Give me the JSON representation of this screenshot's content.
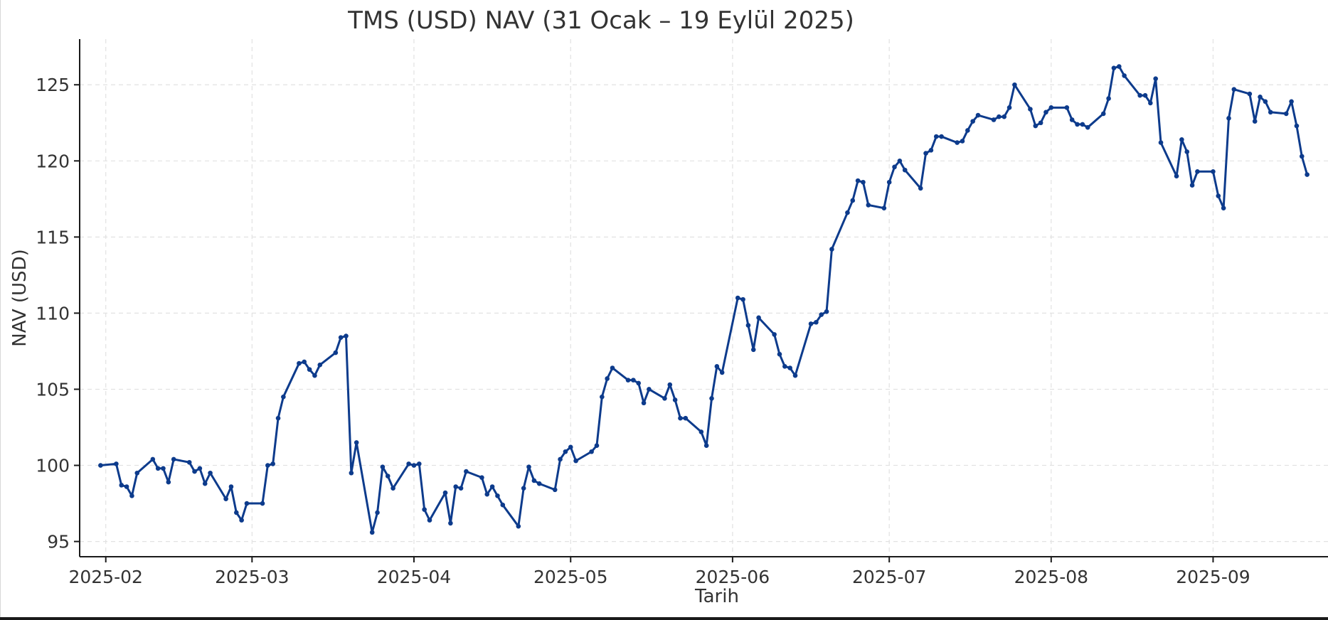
{
  "chart_data": {
    "type": "line",
    "title": "TMS (USD) NAV (31 Ocak – 19 Eylül 2025)",
    "xlabel": "Tarih",
    "ylabel": "NAV (USD)",
    "ylim": [
      94,
      128
    ],
    "xlim": [
      "2025-01-27",
      "2025-09-23"
    ],
    "yticks": [
      95,
      100,
      105,
      110,
      115,
      120,
      125
    ],
    "xticks": [
      "2025-02-01",
      "2025-03-01",
      "2025-04-01",
      "2025-05-01",
      "2025-06-01",
      "2025-07-01",
      "2025-08-01",
      "2025-09-01"
    ],
    "xtick_labels": [
      "2025-02",
      "2025-03",
      "2025-04",
      "2025-05",
      "2025-06",
      "2025-07",
      "2025-08",
      "2025-09"
    ],
    "grid": true,
    "line_color": "#0d3b8c",
    "series": [
      {
        "x": [
          "2025-01-31",
          "2025-02-03",
          "2025-02-04",
          "2025-02-05",
          "2025-02-06",
          "2025-02-07",
          "2025-02-10",
          "2025-02-11",
          "2025-02-12",
          "2025-02-13",
          "2025-02-14",
          "2025-02-17",
          "2025-02-18",
          "2025-02-19",
          "2025-02-20",
          "2025-02-21",
          "2025-02-24",
          "2025-02-25",
          "2025-02-26",
          "2025-02-27",
          "2025-02-28",
          "2025-03-03",
          "2025-03-04",
          "2025-03-05",
          "2025-03-06",
          "2025-03-07",
          "2025-03-10",
          "2025-03-11",
          "2025-03-12",
          "2025-03-13",
          "2025-03-14",
          "2025-03-17",
          "2025-03-18",
          "2025-03-19",
          "2025-03-20",
          "2025-03-21",
          "2025-03-24",
          "2025-03-25",
          "2025-03-26",
          "2025-03-27",
          "2025-03-28",
          "2025-03-31",
          "2025-04-01",
          "2025-04-02",
          "2025-04-03",
          "2025-04-04",
          "2025-04-07",
          "2025-04-08",
          "2025-04-09",
          "2025-04-10",
          "2025-04-11",
          "2025-04-14",
          "2025-04-15",
          "2025-04-16",
          "2025-04-17",
          "2025-04-18",
          "2025-04-21",
          "2025-04-22",
          "2025-04-23",
          "2025-04-24",
          "2025-04-25",
          "2025-04-28",
          "2025-04-29",
          "2025-04-30",
          "2025-05-01",
          "2025-05-02",
          "2025-05-05",
          "2025-05-06",
          "2025-05-07",
          "2025-05-08",
          "2025-05-09",
          "2025-05-12",
          "2025-05-13",
          "2025-05-14",
          "2025-05-15",
          "2025-05-16",
          "2025-05-19",
          "2025-05-20",
          "2025-05-21",
          "2025-05-22",
          "2025-05-23",
          "2025-05-26",
          "2025-05-27",
          "2025-05-28",
          "2025-05-29",
          "2025-05-30",
          "2025-06-02",
          "2025-06-03",
          "2025-06-04",
          "2025-06-05",
          "2025-06-06",
          "2025-06-09",
          "2025-06-10",
          "2025-06-11",
          "2025-06-12",
          "2025-06-13",
          "2025-06-16",
          "2025-06-17",
          "2025-06-18",
          "2025-06-19",
          "2025-06-20",
          "2025-06-23",
          "2025-06-24",
          "2025-06-25",
          "2025-06-26",
          "2025-06-27",
          "2025-06-30",
          "2025-07-01",
          "2025-07-02",
          "2025-07-03",
          "2025-07-04",
          "2025-07-07",
          "2025-07-08",
          "2025-07-09",
          "2025-07-10",
          "2025-07-11",
          "2025-07-14",
          "2025-07-15",
          "2025-07-16",
          "2025-07-17",
          "2025-07-18",
          "2025-07-21",
          "2025-07-22",
          "2025-07-23",
          "2025-07-24",
          "2025-07-25",
          "2025-07-28",
          "2025-07-29",
          "2025-07-30",
          "2025-07-31",
          "2025-08-01",
          "2025-08-04",
          "2025-08-05",
          "2025-08-06",
          "2025-08-07",
          "2025-08-08",
          "2025-08-11",
          "2025-08-12",
          "2025-08-13",
          "2025-08-14",
          "2025-08-15",
          "2025-08-18",
          "2025-08-19",
          "2025-08-20",
          "2025-08-21",
          "2025-08-22",
          "2025-08-25",
          "2025-08-26",
          "2025-08-27",
          "2025-08-28",
          "2025-08-29",
          "2025-09-01",
          "2025-09-02",
          "2025-09-03",
          "2025-09-04",
          "2025-09-05",
          "2025-09-08",
          "2025-09-09",
          "2025-09-10",
          "2025-09-11",
          "2025-09-12",
          "2025-09-15",
          "2025-09-16",
          "2025-09-17",
          "2025-09-18",
          "2025-09-19"
        ],
        "y": [
          100.0,
          100.1,
          98.7,
          98.6,
          98.0,
          99.5,
          100.4,
          99.8,
          99.8,
          98.9,
          100.4,
          100.2,
          99.6,
          99.8,
          98.8,
          99.5,
          97.8,
          98.6,
          96.9,
          96.4,
          97.5,
          97.5,
          100.0,
          100.1,
          103.1,
          104.5,
          106.7,
          106.8,
          106.3,
          105.9,
          106.6,
          107.4,
          108.4,
          108.5,
          99.5,
          101.5,
          95.6,
          96.9,
          99.9,
          99.3,
          98.5,
          100.1,
          100.0,
          100.1,
          97.1,
          96.4,
          98.2,
          96.2,
          98.6,
          98.5,
          99.6,
          99.2,
          98.1,
          98.6,
          98.0,
          97.4,
          96.0,
          98.5,
          99.9,
          99.0,
          98.8,
          98.4,
          100.4,
          100.9,
          101.2,
          100.3,
          100.9,
          101.3,
          104.5,
          105.7,
          106.4,
          105.6,
          105.6,
          105.4,
          104.1,
          105.0,
          104.4,
          105.3,
          104.3,
          103.1,
          103.1,
          102.2,
          101.3,
          104.4,
          106.5,
          106.1,
          111.0,
          110.9,
          109.2,
          107.6,
          109.7,
          108.6,
          107.3,
          106.5,
          106.4,
          105.9,
          109.3,
          109.4,
          109.9,
          110.1,
          114.2,
          116.6,
          117.4,
          118.7,
          118.6,
          117.1,
          116.9,
          118.6,
          119.6,
          120.0,
          119.4,
          118.2,
          120.5,
          120.7,
          121.6,
          121.6,
          121.2,
          121.3,
          122.0,
          122.6,
          123.0,
          122.7,
          122.9,
          122.9,
          123.5,
          125.0,
          123.4,
          122.3,
          122.5,
          123.2,
          123.5,
          123.5,
          122.7,
          122.4,
          122.4,
          122.2,
          123.1,
          124.1,
          126.1,
          126.2,
          125.6,
          124.3,
          124.3,
          123.8,
          125.4,
          121.2,
          119.0,
          121.4,
          120.6,
          118.4,
          119.3,
          119.3,
          117.7,
          116.9,
          122.8,
          124.7,
          124.4,
          122.6,
          124.2,
          123.9,
          123.2,
          123.1,
          123.9,
          122.3,
          120.3,
          119.1
        ]
      }
    ]
  }
}
